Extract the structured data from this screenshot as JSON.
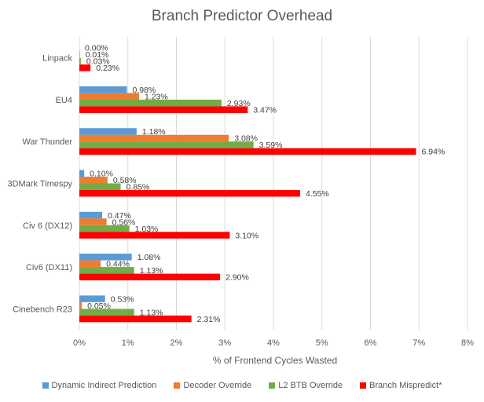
{
  "chart_data": {
    "type": "bar",
    "orientation": "horizontal",
    "title": "Branch Predictor Overhead",
    "xlabel": "% of Frontend Cycles Wasted",
    "ylabel": "",
    "xlim": [
      0,
      8
    ],
    "x_ticks": [
      "0%",
      "1%",
      "2%",
      "3%",
      "4%",
      "5%",
      "6%",
      "7%",
      "8%"
    ],
    "grid": "vertical",
    "legend_position": "bottom",
    "categories": [
      "Linpack",
      "EU4",
      "War Thunder",
      "3DMark Timespy",
      "Civ 6 (DX12)",
      "Civ6 (DX11)",
      "Cinebench R23"
    ],
    "series": [
      {
        "name": "Dynamic Indirect Prediction",
        "color": "#5b9bd5",
        "values": [
          0.0,
          0.98,
          1.18,
          0.1,
          0.47,
          1.08,
          0.53
        ],
        "labels": [
          "0.00%",
          "0.98%",
          "1.18%",
          "0.10%",
          "0.47%",
          "1.08%",
          "0.53%"
        ]
      },
      {
        "name": "Decoder Override",
        "color": "#ed7d31",
        "values": [
          0.01,
          1.23,
          3.08,
          0.58,
          0.56,
          0.44,
          0.05
        ],
        "labels": [
          "0.01%",
          "1.23%",
          "3.08%",
          "0.58%",
          "0.56%",
          "0.44%",
          "0.05%"
        ]
      },
      {
        "name": "L2 BTB Override",
        "color": "#70ad47",
        "values": [
          0.03,
          2.93,
          3.59,
          0.85,
          1.03,
          1.13,
          1.13
        ],
        "labels": [
          "0.03%",
          "2.93%",
          "3.59%",
          "0.85%",
          "1.03%",
          "1.13%",
          "1.13%"
        ]
      },
      {
        "name": "Branch Mispredict*",
        "color": "#ff0000",
        "values": [
          0.23,
          3.47,
          6.94,
          4.55,
          3.1,
          2.9,
          2.31
        ],
        "labels": [
          "0.23%",
          "3.47%",
          "6.94%",
          "4.55%",
          "3.10%",
          "2.90%",
          "2.31%"
        ]
      }
    ]
  }
}
